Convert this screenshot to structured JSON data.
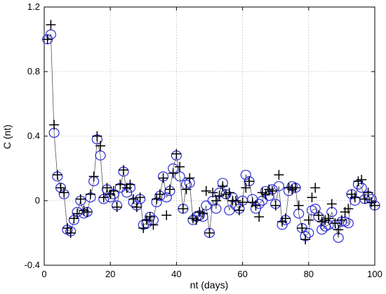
{
  "chart_data": {
    "type": "scatter",
    "title": "",
    "xlabel": "nt (days)",
    "ylabel": "C (nt)",
    "xlim": [
      0,
      100
    ],
    "ylim": [
      -0.4,
      1.2
    ],
    "xticks": [
      0,
      20,
      40,
      60,
      80,
      100
    ],
    "yticks": [
      -0.4,
      0,
      0.4,
      0.8,
      1.2
    ],
    "xtick_labels": [
      "0",
      "20",
      "40",
      "60",
      "80",
      "100"
    ],
    "ytick_labels": [
      "-0.4",
      "0",
      "0.4",
      "0.8",
      "1.2"
    ],
    "grid": true,
    "grid_style": "dotted",
    "legend": "none",
    "colors": {
      "circles": "#2b2bd6",
      "plus": "#000000",
      "line": "#555555",
      "grid": "#999999"
    },
    "series": [
      {
        "marker": "circle",
        "x": [
          1,
          2,
          3,
          4,
          5,
          6,
          7,
          8,
          9,
          10,
          11,
          12,
          13,
          14,
          15,
          16,
          17,
          18,
          19,
          20,
          21,
          22,
          23,
          24,
          25,
          26,
          27,
          28,
          29,
          30,
          31,
          32,
          33,
          34,
          35,
          36,
          37,
          38,
          39,
          40,
          41,
          42,
          43,
          44,
          45,
          46,
          47,
          48,
          49,
          50,
          51,
          52,
          53,
          54,
          55,
          56,
          57,
          58,
          59,
          60,
          61,
          62,
          63,
          64,
          65,
          66,
          67,
          68,
          69,
          70,
          71,
          72,
          73,
          74,
          75,
          76,
          77,
          78,
          79,
          80,
          81,
          82,
          83,
          84,
          85,
          86,
          87,
          88,
          89,
          90,
          91,
          92,
          93,
          94,
          95,
          96,
          97,
          98,
          99,
          100
        ],
        "y": [
          1.0,
          1.03,
          0.42,
          0.15,
          0.08,
          0.04,
          -0.18,
          -0.19,
          -0.12,
          -0.07,
          0.0,
          -0.08,
          -0.07,
          0.02,
          0.12,
          0.38,
          0.28,
          0.01,
          0.07,
          0.02,
          0.04,
          -0.03,
          0.08,
          0.18,
          0.05,
          0.08,
          -0.01,
          -0.03,
          0.01,
          -0.15,
          -0.14,
          -0.1,
          -0.12,
          -0.01,
          0.03,
          0.15,
          0.02,
          0.06,
          0.2,
          0.28,
          0.15,
          -0.05,
          0.1,
          0.11,
          -0.12,
          -0.1,
          -0.09,
          -0.1,
          -0.03,
          -0.2,
          0.0,
          -0.05,
          0.05,
          0.11,
          0.04,
          -0.06,
          0.02,
          -0.03,
          -0.05,
          0.0,
          0.16,
          0.12,
          0.01,
          -0.05,
          -0.02,
          0.0,
          0.06,
          0.03,
          0.07,
          -0.02,
          0.09,
          -0.15,
          -0.12,
          0.06,
          0.09,
          0.08,
          -0.08,
          -0.17,
          -0.22,
          -0.2,
          -0.06,
          -0.05,
          -0.1,
          -0.18,
          -0.16,
          -0.15,
          -0.07,
          -0.15,
          -0.23,
          -0.13,
          -0.13,
          -0.14,
          0.04,
          0.0,
          0.1,
          0.08,
          0.01,
          0.03,
          0.01,
          -0.03
        ]
      },
      {
        "marker": "plus",
        "x": [
          1,
          2,
          3,
          4,
          5,
          6,
          7,
          8,
          9,
          10,
          11,
          12,
          13,
          14,
          15,
          16,
          17,
          18,
          19,
          20,
          21,
          22,
          23,
          24,
          25,
          26,
          27,
          28,
          29,
          30,
          31,
          32,
          33,
          34,
          35,
          36,
          37,
          38,
          39,
          40,
          41,
          42,
          43,
          44,
          45,
          46,
          47,
          48,
          49,
          50,
          51,
          52,
          53,
          54,
          55,
          56,
          57,
          58,
          59,
          60,
          61,
          62,
          63,
          64,
          65,
          66,
          67,
          68,
          69,
          70,
          71,
          72,
          73,
          74,
          75,
          76,
          77,
          78,
          79,
          80,
          81,
          82,
          83,
          84,
          85,
          86,
          87,
          88,
          89,
          90,
          91,
          92,
          93,
          94,
          95,
          96,
          97,
          98,
          99,
          100
        ],
        "y": [
          1.0,
          1.09,
          0.47,
          0.16,
          0.08,
          0.05,
          -0.17,
          -0.2,
          -0.11,
          -0.08,
          0.01,
          -0.06,
          -0.07,
          0.04,
          0.15,
          0.4,
          0.34,
          0.02,
          0.08,
          0.04,
          0.06,
          -0.04,
          0.1,
          0.19,
          0.08,
          0.1,
          0.01,
          -0.04,
          0.02,
          -0.17,
          -0.12,
          -0.1,
          -0.15,
          0.01,
          0.04,
          0.14,
          -0.09,
          0.07,
          0.17,
          0.29,
          0.21,
          -0.05,
          0.07,
          0.14,
          -0.11,
          -0.12,
          -0.07,
          -0.08,
          0.06,
          -0.2,
          0.05,
          0.0,
          0.03,
          0.09,
          0.04,
          0.05,
          0.0,
          0.0,
          -0.06,
          -0.01,
          0.08,
          0.12,
          -0.01,
          -0.03,
          -0.1,
          0.05,
          0.04,
          0.07,
          0.06,
          -0.03,
          0.16,
          -0.13,
          -0.11,
          0.08,
          0.07,
          0.08,
          -0.03,
          -0.17,
          -0.24,
          -0.12,
          0.02,
          0.08,
          -0.09,
          -0.13,
          -0.12,
          -0.11,
          -0.02,
          -0.14,
          -0.18,
          -0.12,
          -0.07,
          -0.05,
          0.04,
          0.02,
          0.12,
          0.13,
          0.01,
          0.05,
          -0.01,
          -0.03
        ]
      }
    ]
  }
}
